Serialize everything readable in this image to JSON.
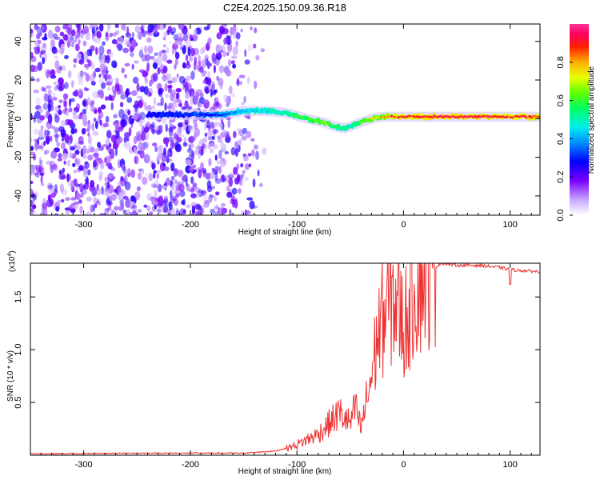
{
  "figure_title": "C2E4.2025.150.09.36.R18",
  "chart_data": [
    {
      "type": "heatmap",
      "xlabel": "Height of straight line (km)",
      "ylabel": "Frequency (Hz)",
      "xlim": [
        -350,
        128
      ],
      "ylim": [
        -50,
        49
      ],
      "x_ticks": [
        -300,
        -200,
        -100,
        0,
        100
      ],
      "y_ticks": [
        -40,
        -20,
        0,
        20,
        40
      ],
      "x_tick_labels": [
        "-300",
        "-200",
        "-100",
        "0",
        "100"
      ],
      "y_tick_labels": [
        "-40",
        "-20",
        "0",
        "20",
        "40"
      ],
      "colorbar": {
        "label": "Normalized spectral amplitude",
        "range": [
          0,
          1
        ],
        "ticks": [
          0.0,
          0.2,
          0.4,
          0.6,
          0.8
        ],
        "tick_labels": [
          "0.0",
          "0.2",
          "0.4",
          "0.6",
          "0.8"
        ],
        "colormap": "rainbow (white-violet-blue-cyan-green-yellow-red-magenta)"
      },
      "ridge": {
        "x": [
          -350,
          -250,
          -200,
          -170,
          -150,
          -130,
          -110,
          -90,
          -75,
          -65,
          -55,
          -50,
          -45,
          -40,
          -30,
          -20,
          -10,
          0,
          20,
          50,
          90,
          128
        ],
        "frequency": [
          2,
          2,
          2,
          2,
          4,
          4,
          3,
          0,
          -2,
          -4,
          -5,
          -4,
          -3,
          -2,
          0,
          1,
          1,
          1,
          1,
          1,
          1,
          1
        ],
        "amplitude": [
          0.08,
          0.1,
          0.2,
          0.35,
          0.45,
          0.5,
          0.55,
          0.65,
          0.7,
          0.6,
          0.55,
          0.5,
          0.6,
          0.65,
          0.75,
          0.8,
          0.9,
          0.95,
          0.98,
          1.0,
          0.95,
          0.95
        ]
      }
    },
    {
      "type": "line",
      "xlabel": "Height of straight line (km)",
      "ylabel": "SNR (10 * v/v)",
      "y_exponent_label": "(x10",
      "y_exponent_power": "4",
      "xlim": [
        -350,
        128
      ],
      "ylim": [
        0,
        1.82
      ],
      "x_ticks": [
        -300,
        -200,
        -100,
        0,
        100
      ],
      "y_ticks": [
        0.5,
        1.0,
        1.5
      ],
      "x_tick_labels": [
        "-300",
        "-200",
        "-100",
        "0",
        "100"
      ],
      "y_tick_labels": [
        "0.5",
        "1.0",
        "1.5"
      ],
      "series": [
        {
          "color": "#ee3333",
          "x": [
            -350,
            -300,
            -250,
            -200,
            -150,
            -120,
            -105,
            -100,
            -90,
            -80,
            -70,
            -60,
            -50,
            -45,
            -40,
            -35,
            -30,
            -25,
            -20,
            -15,
            -10,
            -5,
            0,
            10,
            20,
            30,
            35,
            50,
            70,
            90,
            100,
            110,
            128
          ],
          "y": [
            0.015,
            0.015,
            0.02,
            0.02,
            0.02,
            0.04,
            0.08,
            0.1,
            0.15,
            0.2,
            0.3,
            0.4,
            0.3,
            0.45,
            0.25,
            0.5,
            0.75,
            1.1,
            1.3,
            1.4,
            1.5,
            1.45,
            1.2,
            1.6,
            1.75,
            1.78,
            1.82,
            1.8,
            1.8,
            1.78,
            1.76,
            1.75,
            1.74
          ]
        }
      ]
    }
  ]
}
